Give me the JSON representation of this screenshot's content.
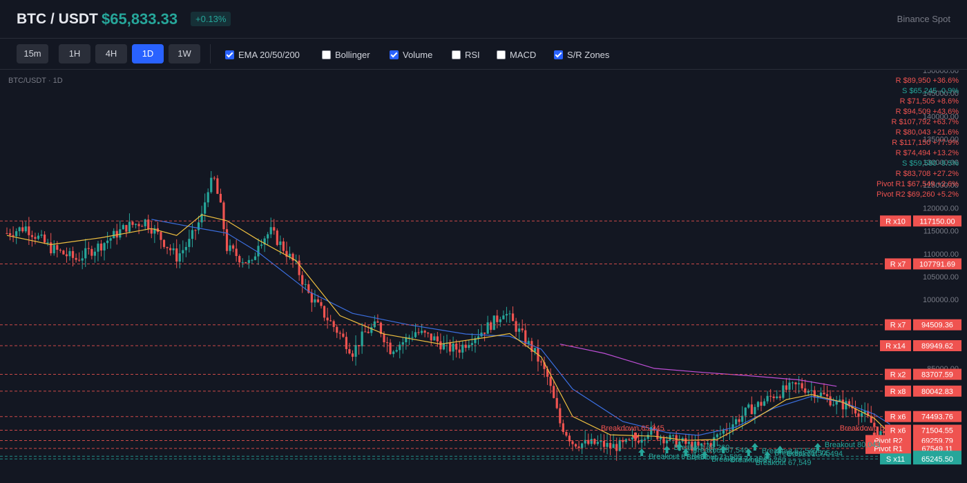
{
  "header": {
    "pair": "BTC / USDT",
    "price": "$65,833.33",
    "change": "+0.13%",
    "exchange": "Binance Spot"
  },
  "toolbar": {
    "timeframes": [
      {
        "label": "15m",
        "active": false
      },
      {
        "label": "1H",
        "active": false
      },
      {
        "label": "4H",
        "active": false
      },
      {
        "label": "1D",
        "active": true
      },
      {
        "label": "1W",
        "active": false
      }
    ],
    "indicators": [
      {
        "label": "EMA 20/50/200",
        "checked": true
      },
      {
        "label": "Bollinger",
        "checked": false
      },
      {
        "label": "Volume",
        "checked": true
      },
      {
        "label": "RSI",
        "checked": false
      },
      {
        "label": "MACD",
        "checked": false
      },
      {
        "label": "S/R Zones",
        "checked": true
      }
    ]
  },
  "chart_label": "BTC/USDT · 1D",
  "colors": {
    "up": "#26a69a",
    "down": "#ef5350",
    "ema20": "#f0c040",
    "ema50": "#3b6fe0",
    "ema200": "#c04fd8",
    "background": "#131722"
  },
  "chart_data": {
    "type": "candlestick",
    "y_axis": {
      "ticks": [
        "150000.00",
        "145000.00",
        "140000.00",
        "135000.00",
        "130000.00",
        "125000.00",
        "120000.00",
        "115000.00",
        "110000.00",
        "105000.00",
        "100000.00",
        "95000.00",
        "90000.00",
        "85000.00",
        "80000.00",
        "75000.00",
        "70000.00"
      ],
      "tick_values": [
        150000,
        145000,
        140000,
        135000,
        130000,
        125000,
        120000,
        115000,
        110000,
        105000,
        100000,
        95000,
        90000,
        85000,
        80000,
        75000,
        70000
      ]
    },
    "price_path": [
      [
        0,
        114500
      ],
      [
        6,
        115800
      ],
      [
        14,
        111200
      ],
      [
        22,
        108800
      ],
      [
        30,
        112000
      ],
      [
        38,
        115900
      ],
      [
        44,
        117150
      ],
      [
        48,
        114200
      ],
      [
        54,
        109300
      ],
      [
        58,
        112500
      ],
      [
        62,
        118100
      ],
      [
        64,
        124600
      ],
      [
        66,
        126000
      ],
      [
        68,
        120000
      ],
      [
        70,
        111300
      ],
      [
        74,
        109200
      ],
      [
        78,
        107600
      ],
      [
        80,
        112700
      ],
      [
        84,
        114800
      ],
      [
        88,
        111200
      ],
      [
        92,
        107300
      ],
      [
        96,
        101200
      ],
      [
        100,
        97600
      ],
      [
        106,
        92400
      ],
      [
        110,
        88600
      ],
      [
        114,
        92800
      ],
      [
        118,
        94500
      ],
      [
        122,
        89200
      ],
      [
        126,
        90800
      ],
      [
        130,
        93000
      ],
      [
        136,
        91400
      ],
      [
        140,
        89400
      ],
      [
        144,
        89300
      ],
      [
        148,
        91800
      ],
      [
        152,
        93500
      ],
      [
        156,
        95800
      ],
      [
        158,
        97600
      ],
      [
        160,
        95800
      ],
      [
        164,
        92100
      ],
      [
        168,
        88300
      ],
      [
        172,
        83000
      ],
      [
        176,
        73100
      ],
      [
        180,
        68900
      ],
      [
        184,
        68500
      ],
      [
        188,
        68600
      ],
      [
        192,
        67900
      ],
      [
        196,
        68200
      ],
      [
        200,
        69300
      ],
      [
        204,
        71500
      ],
      [
        208,
        70200
      ],
      [
        212,
        69200
      ],
      [
        216,
        68500
      ],
      [
        220,
        67700
      ],
      [
        224,
        68800
      ],
      [
        228,
        71400
      ],
      [
        232,
        73600
      ],
      [
        236,
        75900
      ],
      [
        240,
        77400
      ],
      [
        244,
        79200
      ],
      [
        248,
        80400
      ],
      [
        252,
        81300
      ],
      [
        256,
        80200
      ],
      [
        260,
        79000
      ],
      [
        264,
        77300
      ],
      [
        268,
        76900
      ],
      [
        272,
        75300
      ],
      [
        276,
        72400
      ],
      [
        279,
        69700
      ],
      [
        281,
        65830
      ]
    ],
    "ema20": [
      [
        0,
        114000
      ],
      [
        14,
        112000
      ],
      [
        30,
        113500
      ],
      [
        46,
        115500
      ],
      [
        54,
        114000
      ],
      [
        62,
        118500
      ],
      [
        70,
        117200
      ],
      [
        80,
        113000
      ],
      [
        92,
        108500
      ],
      [
        106,
        96500
      ],
      [
        120,
        92500
      ],
      [
        138,
        90300
      ],
      [
        152,
        91700
      ],
      [
        160,
        92600
      ],
      [
        170,
        87500
      ],
      [
        180,
        74500
      ],
      [
        192,
        70500
      ],
      [
        206,
        70200
      ],
      [
        216,
        69300
      ],
      [
        226,
        69500
      ],
      [
        236,
        73200
      ],
      [
        248,
        78200
      ],
      [
        256,
        79300
      ],
      [
        266,
        77600
      ],
      [
        276,
        74100
      ],
      [
        281,
        70800
      ]
    ],
    "ema50": [
      [
        46,
        117500
      ],
      [
        60,
        115700
      ],
      [
        70,
        114500
      ],
      [
        80,
        110300
      ],
      [
        96,
        101800
      ],
      [
        110,
        97000
      ],
      [
        128,
        94500
      ],
      [
        146,
        92500
      ],
      [
        160,
        92000
      ],
      [
        170,
        89200
      ],
      [
        180,
        80500
      ],
      [
        196,
        73400
      ],
      [
        210,
        71000
      ],
      [
        220,
        70400
      ],
      [
        232,
        72200
      ],
      [
        244,
        76300
      ],
      [
        256,
        78900
      ],
      [
        266,
        77600
      ],
      [
        276,
        75000
      ],
      [
        281,
        72800
      ]
    ],
    "ema200": [
      [
        176,
        90300
      ],
      [
        190,
        88300
      ],
      [
        206,
        85000
      ],
      [
        220,
        84200
      ],
      [
        236,
        83400
      ],
      [
        252,
        82500
      ],
      [
        264,
        81100
      ]
    ],
    "sr_levels": [
      {
        "label": "R x10",
        "price": "117150.00",
        "value": 117150,
        "type": "R"
      },
      {
        "label": "R x7",
        "price": "107791.69",
        "value": 107791.69,
        "type": "R"
      },
      {
        "label": "R x7",
        "price": "94509.36",
        "value": 94509.36,
        "type": "R"
      },
      {
        "label": "R x14",
        "price": "89949.62",
        "value": 89949.62,
        "type": "R"
      },
      {
        "label": "R x2",
        "price": "83707.59",
        "value": 83707.59,
        "type": "R"
      },
      {
        "label": "R x8",
        "price": "80042.83",
        "value": 80042.83,
        "type": "R"
      },
      {
        "label": "R x6",
        "price": "74493.76",
        "value": 74493.76,
        "type": "R"
      },
      {
        "label": "R x6",
        "price": "71504.55",
        "value": 71504.55,
        "type": "R"
      },
      {
        "label": "Pivot R2",
        "price": "69259.79",
        "value": 69259.79,
        "type": "P"
      },
      {
        "label": "Pivot R1",
        "price": "67549.11",
        "value": 67549.11,
        "type": "P"
      },
      {
        "label": "",
        "price": "65833.33",
        "value": 65833.33,
        "type": "last"
      },
      {
        "label": "S x11",
        "price": "65245.50",
        "value": 65245.5,
        "type": "S"
      }
    ],
    "level_list": [
      {
        "text": "R $89,950 +36.6%",
        "type": "R"
      },
      {
        "text": "S $65,245 -0.9%",
        "type": "S"
      },
      {
        "text": "R $71,505 +8.6%",
        "type": "R"
      },
      {
        "text": "R $94,509 +43.6%",
        "type": "R"
      },
      {
        "text": "R $107,792 +63.7%",
        "type": "R"
      },
      {
        "text": "R $80,043 +21.6%",
        "type": "R"
      },
      {
        "text": "R $117,150 +77.9%",
        "type": "R"
      },
      {
        "text": "R $74,494 +13.2%",
        "type": "R"
      },
      {
        "text": "S $59,580 -9.5%",
        "type": "S"
      },
      {
        "text": "R $83,708 +27.2%",
        "type": "R"
      },
      {
        "text": "Pivot R1 $67,549 +2.6%",
        "type": "R"
      },
      {
        "text": "Pivot R2 $69,260 +5.2%",
        "type": "R"
      }
    ],
    "signals": [
      {
        "text": "Breakdown 65,245",
        "kind": "down",
        "day": 200
      },
      {
        "text": "Breakout 67,549",
        "kind": "up",
        "day": 202
      },
      {
        "text": "Breakout 69,260",
        "kind": "up",
        "day": 210
      },
      {
        "text": "Breakout 71,505",
        "kind": "up",
        "day": 214
      },
      {
        "text": "Breakout 74,494",
        "kind": "up",
        "day": 222
      },
      {
        "text": "Breakout 67,549",
        "kind": "up",
        "day": 216
      },
      {
        "text": "Breakout 69,260",
        "kind": "up",
        "day": 228
      },
      {
        "text": "Breakout 67,549",
        "kind": "up",
        "day": 238
      },
      {
        "text": "Breakout 71,505",
        "kind": "up",
        "day": 242
      },
      {
        "text": "Breakout 67,549",
        "kind": "up",
        "day": 236
      },
      {
        "text": "Breakout 74,494",
        "kind": "up",
        "day": 246
      },
      {
        "text": "Breakout 80,043",
        "kind": "up",
        "day": 258
      },
      {
        "text": "Breakdown 6",
        "kind": "down",
        "day": 276
      }
    ]
  }
}
